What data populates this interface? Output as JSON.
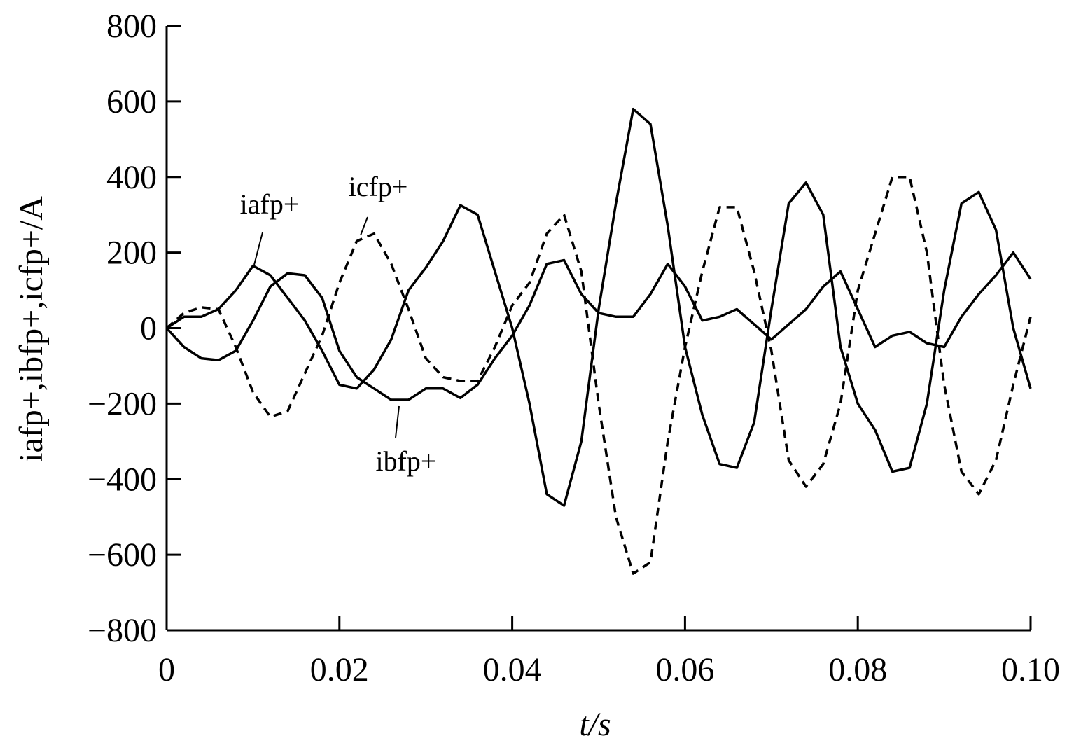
{
  "chart_data": {
    "type": "line",
    "xlabel": "t/s",
    "ylabel": "iafp+,ibfp+,icfp+/A",
    "x": [
      0,
      0.002,
      0.004,
      0.006,
      0.008,
      0.01,
      0.012,
      0.014,
      0.016,
      0.018,
      0.02,
      0.022,
      0.024,
      0.026,
      0.028,
      0.03,
      0.032,
      0.034,
      0.036,
      0.038,
      0.04,
      0.042,
      0.044,
      0.046,
      0.048,
      0.05,
      0.052,
      0.054,
      0.056,
      0.058,
      0.06,
      0.062,
      0.064,
      0.066,
      0.068,
      0.07,
      0.072,
      0.074,
      0.076,
      0.078,
      0.08,
      0.082,
      0.084,
      0.086,
      0.088,
      0.09,
      0.092,
      0.094,
      0.096,
      0.098,
      0.1
    ],
    "series": [
      {
        "name": "iafp+",
        "color": "#000000",
        "dash": "solid",
        "values": [
          0,
          30,
          30,
          50,
          100,
          165,
          140,
          80,
          20,
          -60,
          -150,
          -160,
          -110,
          -30,
          100,
          160,
          230,
          325,
          300,
          150,
          0,
          -200,
          -440,
          -470,
          -300,
          50,
          330,
          580,
          540,
          270,
          -50,
          -230,
          -360,
          -370,
          -250,
          50,
          330,
          385,
          300,
          -50,
          -200,
          -270,
          -380,
          -370,
          -200,
          100,
          330,
          360,
          260,
          0,
          -160
        ]
      },
      {
        "name": "ibfp+",
        "color": "#000000",
        "dash": "solid",
        "values": [
          0,
          -50,
          -80,
          -85,
          -60,
          20,
          110,
          145,
          140,
          80,
          -60,
          -130,
          -160,
          -190,
          -190,
          -160,
          -160,
          -185,
          -150,
          -80,
          -20,
          60,
          170,
          180,
          90,
          40,
          30,
          30,
          90,
          170,
          110,
          20,
          30,
          50,
          10,
          -30,
          10,
          50,
          110,
          150,
          50,
          -50,
          -20,
          -10,
          -40,
          -50,
          30,
          90,
          140,
          200,
          130
        ]
      },
      {
        "name": "icfp+",
        "color": "#000000",
        "dash": "dashed",
        "values": [
          0,
          40,
          55,
          50,
          -50,
          -170,
          -235,
          -220,
          -120,
          -20,
          120,
          230,
          250,
          170,
          50,
          -80,
          -130,
          -140,
          -140,
          -50,
          60,
          120,
          250,
          300,
          150,
          -200,
          -500,
          -650,
          -620,
          -300,
          -50,
          150,
          320,
          320,
          150,
          -60,
          -350,
          -420,
          -360,
          -200,
          100,
          250,
          400,
          400,
          200,
          -150,
          -380,
          -440,
          -350,
          -150,
          30
        ]
      }
    ],
    "xlim": [
      0,
      0.1
    ],
    "xticks": [
      0,
      0.02,
      0.04,
      0.06,
      0.08,
      {
        "value": 0.1,
        "label": "0.10"
      }
    ],
    "ylim": [
      -800,
      800
    ],
    "yticks": [
      {
        "value": -800,
        "label": "−800"
      },
      {
        "value": -600,
        "label": "−600"
      },
      {
        "value": -400,
        "label": "−400"
      },
      {
        "value": -200,
        "label": "−200"
      },
      0,
      200,
      400,
      600,
      800
    ],
    "grid": false
  }
}
